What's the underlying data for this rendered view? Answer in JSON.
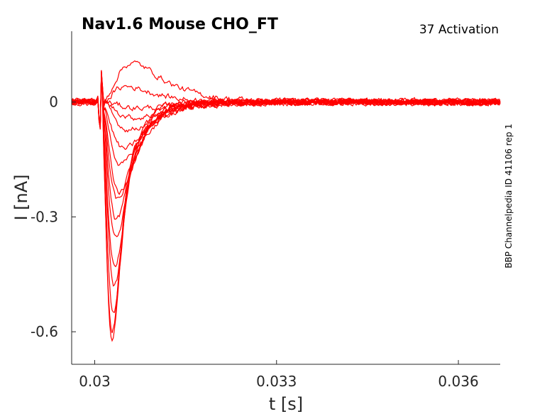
{
  "header": {
    "title": "Nav1.6  Mouse  CHO_FT",
    "subtitle": "37  Activation",
    "side_note": "BBP Channelpedia ID 41106 rep 1"
  },
  "chart_data": {
    "type": "line",
    "title": "Nav1.6  Mouse  CHO_FT",
    "xlabel": "t [s]",
    "ylabel": "I [nA]",
    "xlim": [
      0.02962,
      0.03669
    ],
    "ylim": [
      -0.685,
      0.185
    ],
    "xticks": [
      0.03,
      0.033,
      0.036
    ],
    "xtick_labels": [
      "0.03",
      "0.033",
      "0.036"
    ],
    "yticks": [
      0,
      -0.3,
      -0.6
    ],
    "ytick_labels": [
      "0",
      "-0.3",
      "-0.6"
    ],
    "color": "#ff0000",
    "grid": false,
    "legend": "none",
    "stimulus_onset": 0.0301,
    "series": [
      {
        "peak_time": 0.03032,
        "peak": -0.61,
        "hump": 0.06
      },
      {
        "peak_time": 0.03032,
        "peak": -0.585,
        "hump": 0.05
      },
      {
        "peak_time": 0.03034,
        "peak": -0.54,
        "hump": 0.06
      },
      {
        "peak_time": 0.03036,
        "peak": -0.47,
        "hump": 0.05
      },
      {
        "peak_time": 0.03037,
        "peak": -0.42,
        "hump": 0.04
      },
      {
        "peak_time": 0.03039,
        "peak": -0.35,
        "hump": 0.04
      },
      {
        "peak_time": 0.0304,
        "peak": -0.3,
        "hump": 0.03
      },
      {
        "peak_time": 0.03042,
        "peak": -0.25,
        "hump": 0.02
      },
      {
        "peak_time": 0.03046,
        "peak": -0.23,
        "hump": 0.015
      },
      {
        "peak_time": 0.03049,
        "peak": -0.16,
        "hump": 0.01
      },
      {
        "peak_time": 0.03055,
        "peak": -0.12,
        "hump": 0.0
      },
      {
        "peak_time": 0.03064,
        "peak": -0.07,
        "hump": 0.0
      },
      {
        "peak_time": 0.03075,
        "peak": -0.04,
        "hump": 0.0
      },
      {
        "peak_time": 0.03085,
        "peak": -0.015,
        "hump": 0.0
      },
      {
        "peak_time": 0.0307,
        "peak": 0.1,
        "hump": 0.0
      },
      {
        "peak_time": 0.0306,
        "peak": 0.04,
        "hump": 0.0
      }
    ]
  }
}
